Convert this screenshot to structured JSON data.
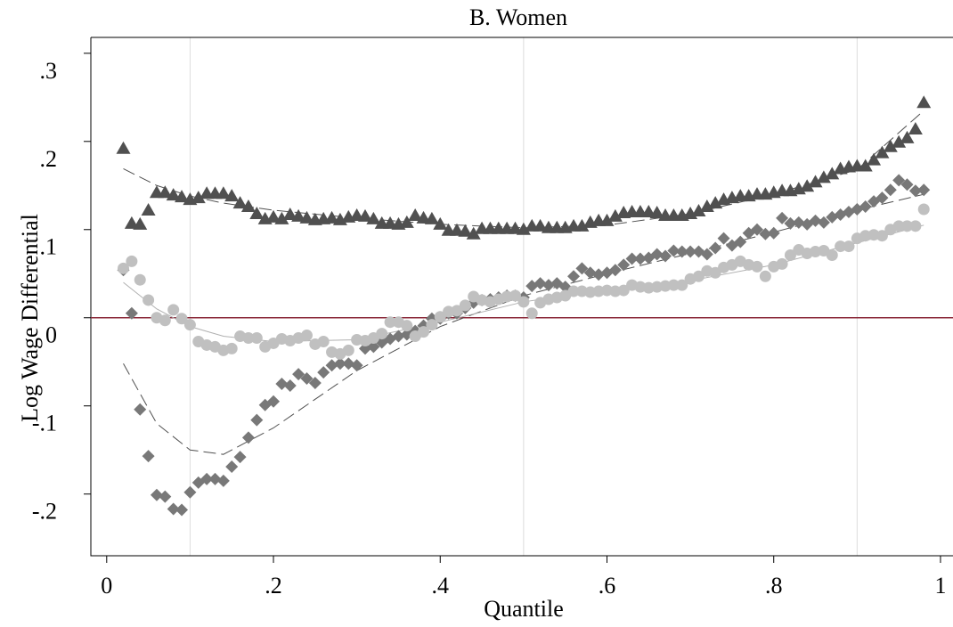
{
  "chart_data": {
    "type": "scatter",
    "title": "B. Women",
    "xlabel": "Quantile",
    "ylabel": "Log Wage Differential",
    "xlim": [
      -0.019,
      1.015
    ],
    "ylim": [
      -0.27,
      0.318
    ],
    "xticks": [
      0,
      {
        "value": 0.2,
        "label": ".2"
      },
      {
        "value": 0.4,
        "label": ".4"
      },
      {
        "value": 0.6,
        "label": ".6"
      },
      {
        "value": 0.8,
        "label": ".8"
      },
      1
    ],
    "yticks": [
      {
        "value": -0.2,
        "label": "-.2"
      },
      {
        "value": -0.1,
        "label": "-.1"
      },
      0,
      {
        "value": 0.1,
        "label": ".1"
      },
      {
        "value": 0.2,
        "label": ".2"
      },
      {
        "value": 0.3,
        "label": ".3"
      }
    ],
    "xlines": [
      0.1,
      0.5,
      0.9
    ],
    "xline_color": "#dcdcdc",
    "yline": 0,
    "yline_color": "#8b2a3a",
    "x": [
      0.02,
      0.03,
      0.04,
      0.05,
      0.06,
      0.07,
      0.08,
      0.09,
      0.1,
      0.11,
      0.12,
      0.13,
      0.14,
      0.15,
      0.16,
      0.17,
      0.18,
      0.19,
      0.2,
      0.21,
      0.22,
      0.23,
      0.24,
      0.25,
      0.26,
      0.27,
      0.28,
      0.29,
      0.3,
      0.31,
      0.32,
      0.33,
      0.34,
      0.35,
      0.36,
      0.37,
      0.38,
      0.39,
      0.4,
      0.41,
      0.42,
      0.43,
      0.44,
      0.45,
      0.46,
      0.47,
      0.48,
      0.49,
      0.5,
      0.51,
      0.52,
      0.53,
      0.54,
      0.55,
      0.56,
      0.57,
      0.58,
      0.59,
      0.6,
      0.61,
      0.62,
      0.63,
      0.64,
      0.65,
      0.66,
      0.67,
      0.68,
      0.69,
      0.7,
      0.71,
      0.72,
      0.73,
      0.74,
      0.75,
      0.76,
      0.77,
      0.78,
      0.79,
      0.8,
      0.81,
      0.82,
      0.83,
      0.84,
      0.85,
      0.86,
      0.87,
      0.88,
      0.89,
      0.9,
      0.91,
      0.92,
      0.93,
      0.94,
      0.95,
      0.96,
      0.97,
      0.98
    ],
    "series": [
      {
        "marker": "triangle",
        "color": "#505050",
        "values": [
          0.192,
          0.107,
          0.106,
          0.122,
          0.142,
          0.142,
          0.139,
          0.137,
          0.134,
          0.136,
          0.141,
          0.141,
          0.141,
          0.138,
          0.13,
          0.126,
          0.118,
          0.112,
          0.114,
          0.112,
          0.117,
          0.115,
          0.113,
          0.111,
          0.112,
          0.113,
          0.111,
          0.114,
          0.116,
          0.115,
          0.112,
          0.107,
          0.107,
          0.106,
          0.108,
          0.116,
          0.113,
          0.112,
          0.106,
          0.099,
          0.099,
          0.098,
          0.095,
          0.101,
          0.101,
          0.101,
          0.101,
          0.101,
          0.1,
          0.104,
          0.104,
          0.102,
          0.102,
          0.102,
          0.104,
          0.104,
          0.108,
          0.11,
          0.11,
          0.115,
          0.119,
          0.12,
          0.12,
          0.12,
          0.119,
          0.116,
          0.116,
          0.116,
          0.118,
          0.121,
          0.126,
          0.13,
          0.134,
          0.136,
          0.138,
          0.138,
          0.14,
          0.14,
          0.142,
          0.144,
          0.144,
          0.146,
          0.149,
          0.154,
          0.159,
          0.163,
          0.169,
          0.171,
          0.172,
          0.172,
          0.179,
          0.187,
          0.194,
          0.199,
          0.204,
          0.214,
          0.244
        ]
      },
      {
        "marker": "diamond",
        "color": "#787878",
        "values": [
          0.054,
          0.005,
          -0.104,
          -0.157,
          -0.201,
          -0.203,
          -0.217,
          -0.218,
          -0.198,
          -0.187,
          -0.183,
          -0.183,
          -0.185,
          -0.169,
          -0.158,
          -0.136,
          -0.116,
          -0.099,
          -0.095,
          -0.075,
          -0.077,
          -0.064,
          -0.069,
          -0.074,
          -0.062,
          -0.054,
          -0.052,
          -0.052,
          -0.054,
          -0.035,
          -0.033,
          -0.028,
          -0.024,
          -0.021,
          -0.019,
          -0.015,
          -0.009,
          -0.001,
          -0.001,
          0.005,
          0.005,
          0.011,
          0.017,
          0.02,
          0.021,
          0.023,
          0.025,
          0.025,
          0.023,
          0.036,
          0.039,
          0.037,
          0.039,
          0.035,
          0.047,
          0.056,
          0.051,
          0.049,
          0.051,
          0.054,
          0.06,
          0.067,
          0.067,
          0.068,
          0.072,
          0.07,
          0.076,
          0.075,
          0.075,
          0.075,
          0.072,
          0.079,
          0.09,
          0.082,
          0.086,
          0.096,
          0.1,
          0.095,
          0.096,
          0.113,
          0.107,
          0.108,
          0.106,
          0.11,
          0.108,
          0.114,
          0.117,
          0.12,
          0.123,
          0.126,
          0.132,
          0.136,
          0.145,
          0.156,
          0.151,
          0.144,
          0.145
        ]
      },
      {
        "marker": "circle",
        "color": "#c0c0c0",
        "values": [
          0.056,
          0.064,
          0.043,
          0.02,
          0.0,
          -0.003,
          0.009,
          -0.001,
          -0.008,
          -0.027,
          -0.031,
          -0.033,
          -0.037,
          -0.035,
          -0.021,
          -0.023,
          -0.023,
          -0.033,
          -0.029,
          -0.024,
          -0.026,
          -0.023,
          -0.02,
          -0.03,
          -0.027,
          -0.039,
          -0.041,
          -0.037,
          -0.025,
          -0.026,
          -0.023,
          -0.018,
          -0.005,
          -0.005,
          -0.009,
          -0.021,
          -0.016,
          -0.008,
          0.001,
          0.007,
          0.008,
          0.014,
          0.024,
          0.02,
          0.018,
          0.021,
          0.024,
          0.025,
          0.018,
          0.005,
          0.017,
          0.021,
          0.023,
          0.025,
          0.03,
          0.03,
          0.029,
          0.03,
          0.031,
          0.03,
          0.031,
          0.037,
          0.035,
          0.034,
          0.035,
          0.036,
          0.037,
          0.037,
          0.044,
          0.047,
          0.053,
          0.051,
          0.057,
          0.06,
          0.064,
          0.06,
          0.058,
          0.047,
          0.058,
          0.061,
          0.071,
          0.077,
          0.073,
          0.075,
          0.076,
          0.071,
          0.081,
          0.081,
          0.09,
          0.093,
          0.094,
          0.093,
          0.1,
          0.104,
          0.104,
          0.104,
          0.123
        ]
      }
    ],
    "fits": {
      "x": [
        0.02,
        0.06,
        0.1,
        0.14,
        0.2,
        0.3,
        0.4,
        0.5,
        0.6,
        0.7,
        0.8,
        0.9,
        0.98
      ],
      "series": [
        {
          "color": "#505050",
          "dashed": true,
          "values": [
            0.169,
            0.15,
            0.138,
            0.13,
            0.122,
            0.113,
            0.106,
            0.102,
            0.105,
            0.118,
            0.14,
            0.168,
            0.235
          ]
        },
        {
          "color": "#505050",
          "dashed": true,
          "values": [
            -0.052,
            -0.12,
            -0.15,
            -0.155,
            -0.125,
            -0.06,
            -0.01,
            0.025,
            0.05,
            0.073,
            0.097,
            0.122,
            0.14
          ]
        },
        {
          "color": "#b0b0b0",
          "dashed": false,
          "values": [
            0.04,
            0.01,
            -0.01,
            -0.021,
            -0.027,
            -0.025,
            -0.005,
            0.018,
            0.032,
            0.042,
            0.06,
            0.085,
            0.105
          ]
        }
      ]
    }
  }
}
